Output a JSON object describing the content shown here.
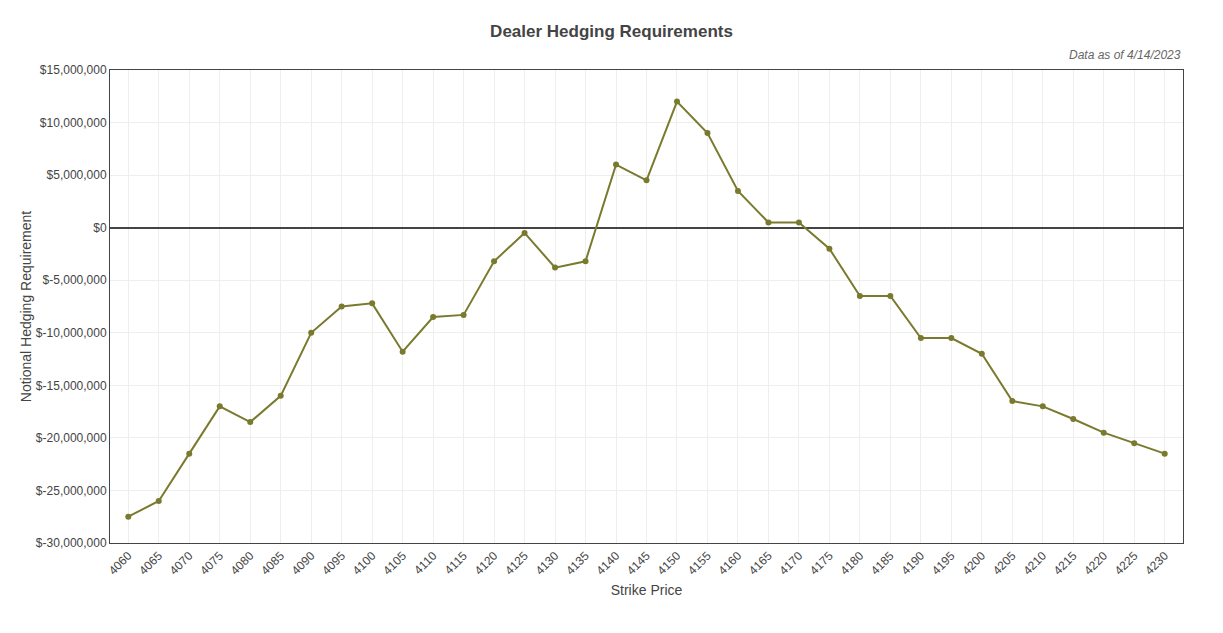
{
  "chart_data": {
    "type": "line",
    "title": "Dealer Hedging Requirements",
    "subtitle": "Data as of 4/14/2023",
    "xlabel": "Strike Price",
    "ylabel": "Notional Hedging Requirement",
    "x": [
      4060,
      4065,
      4070,
      4075,
      4080,
      4085,
      4090,
      4095,
      4100,
      4105,
      4110,
      4115,
      4120,
      4125,
      4130,
      4135,
      4140,
      4145,
      4150,
      4155,
      4160,
      4165,
      4170,
      4175,
      4180,
      4185,
      4190,
      4195,
      4200,
      4205,
      4210,
      4215,
      4220,
      4225,
      4230
    ],
    "values": [
      -27500000,
      -26000000,
      -21500000,
      -17000000,
      -18500000,
      -16000000,
      -10000000,
      -7500000,
      -7200000,
      -11800000,
      -8500000,
      -8300000,
      -3200000,
      -500000,
      -3800000,
      -3200000,
      6000000,
      4500000,
      12000000,
      9000000,
      3500000,
      500000,
      500000,
      -2000000,
      -6500000,
      -6500000,
      -10500000,
      -10500000,
      -12000000,
      -16500000,
      -17000000,
      -18200000,
      -19500000,
      -20500000,
      -21500000
    ],
    "color": "#7a7a2e",
    "marker": "circle",
    "xlim": [
      4057,
      4233
    ],
    "xticks": [
      4060,
      4065,
      4070,
      4075,
      4080,
      4085,
      4090,
      4095,
      4100,
      4105,
      4110,
      4115,
      4120,
      4125,
      4130,
      4135,
      4140,
      4145,
      4150,
      4155,
      4160,
      4165,
      4170,
      4175,
      4180,
      4185,
      4190,
      4195,
      4200,
      4205,
      4210,
      4215,
      4220,
      4225,
      4230
    ],
    "ylim": [
      -30000000,
      15000000
    ],
    "yticks": [
      {
        "value": -30000000,
        "label": "$-30,000,000"
      },
      {
        "value": -25000000,
        "label": "$-25,000,000"
      },
      {
        "value": -20000000,
        "label": "$-20,000,000"
      },
      {
        "value": -15000000,
        "label": "$-15,000,000"
      },
      {
        "value": -10000000,
        "label": "$-10,000,000"
      },
      {
        "value": -5000000,
        "label": "$-5,000,000"
      },
      {
        "value": 0,
        "label": "$0"
      },
      {
        "value": 5000000,
        "label": "$5,000,000"
      },
      {
        "value": 10000000,
        "label": "$10,000,000"
      },
      {
        "value": 15000000,
        "label": "$15,000,000"
      }
    ],
    "grid": true
  }
}
